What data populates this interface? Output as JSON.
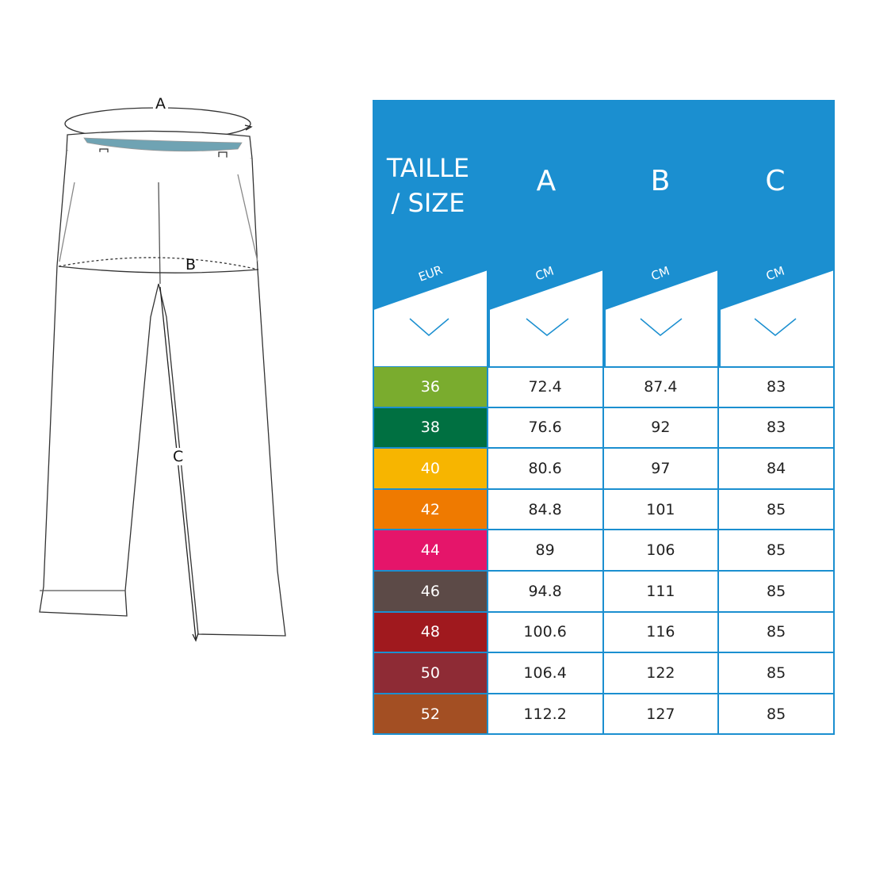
{
  "diagram": {
    "labels": {
      "a": "A",
      "b": "B",
      "c": "C"
    }
  },
  "table": {
    "header": {
      "title_line1": "TAILLE",
      "title_line2": "/ SIZE",
      "columns": [
        "A",
        "B",
        "C"
      ],
      "units": [
        "EUR",
        "CM",
        "CM",
        "CM"
      ]
    },
    "accent_color": "#1b8fd0",
    "rows": [
      {
        "size": "36",
        "a": "72.4",
        "b": "87.4",
        "c": "83",
        "color": "#7aac2e"
      },
      {
        "size": "38",
        "a": "76.6",
        "b": "92",
        "c": "83",
        "color": "#007041"
      },
      {
        "size": "40",
        "a": "80.6",
        "b": "97",
        "c": "84",
        "color": "#f7b500"
      },
      {
        "size": "42",
        "a": "84.8",
        "b": "101",
        "c": "85",
        "color": "#ef7a00"
      },
      {
        "size": "44",
        "a": "89",
        "b": "106",
        "c": "85",
        "color": "#e5156a"
      },
      {
        "size": "46",
        "a": "94.8",
        "b": "111",
        "c": "85",
        "color": "#5c4a47"
      },
      {
        "size": "48",
        "a": "100.6",
        "b": "116",
        "c": "85",
        "color": "#a0191e"
      },
      {
        "size": "50",
        "a": "106.4",
        "b": "122",
        "c": "85",
        "color": "#8e2b35"
      },
      {
        "size": "52",
        "a": "112.2",
        "b": "127",
        "c": "85",
        "color": "#a34f23"
      }
    ]
  }
}
